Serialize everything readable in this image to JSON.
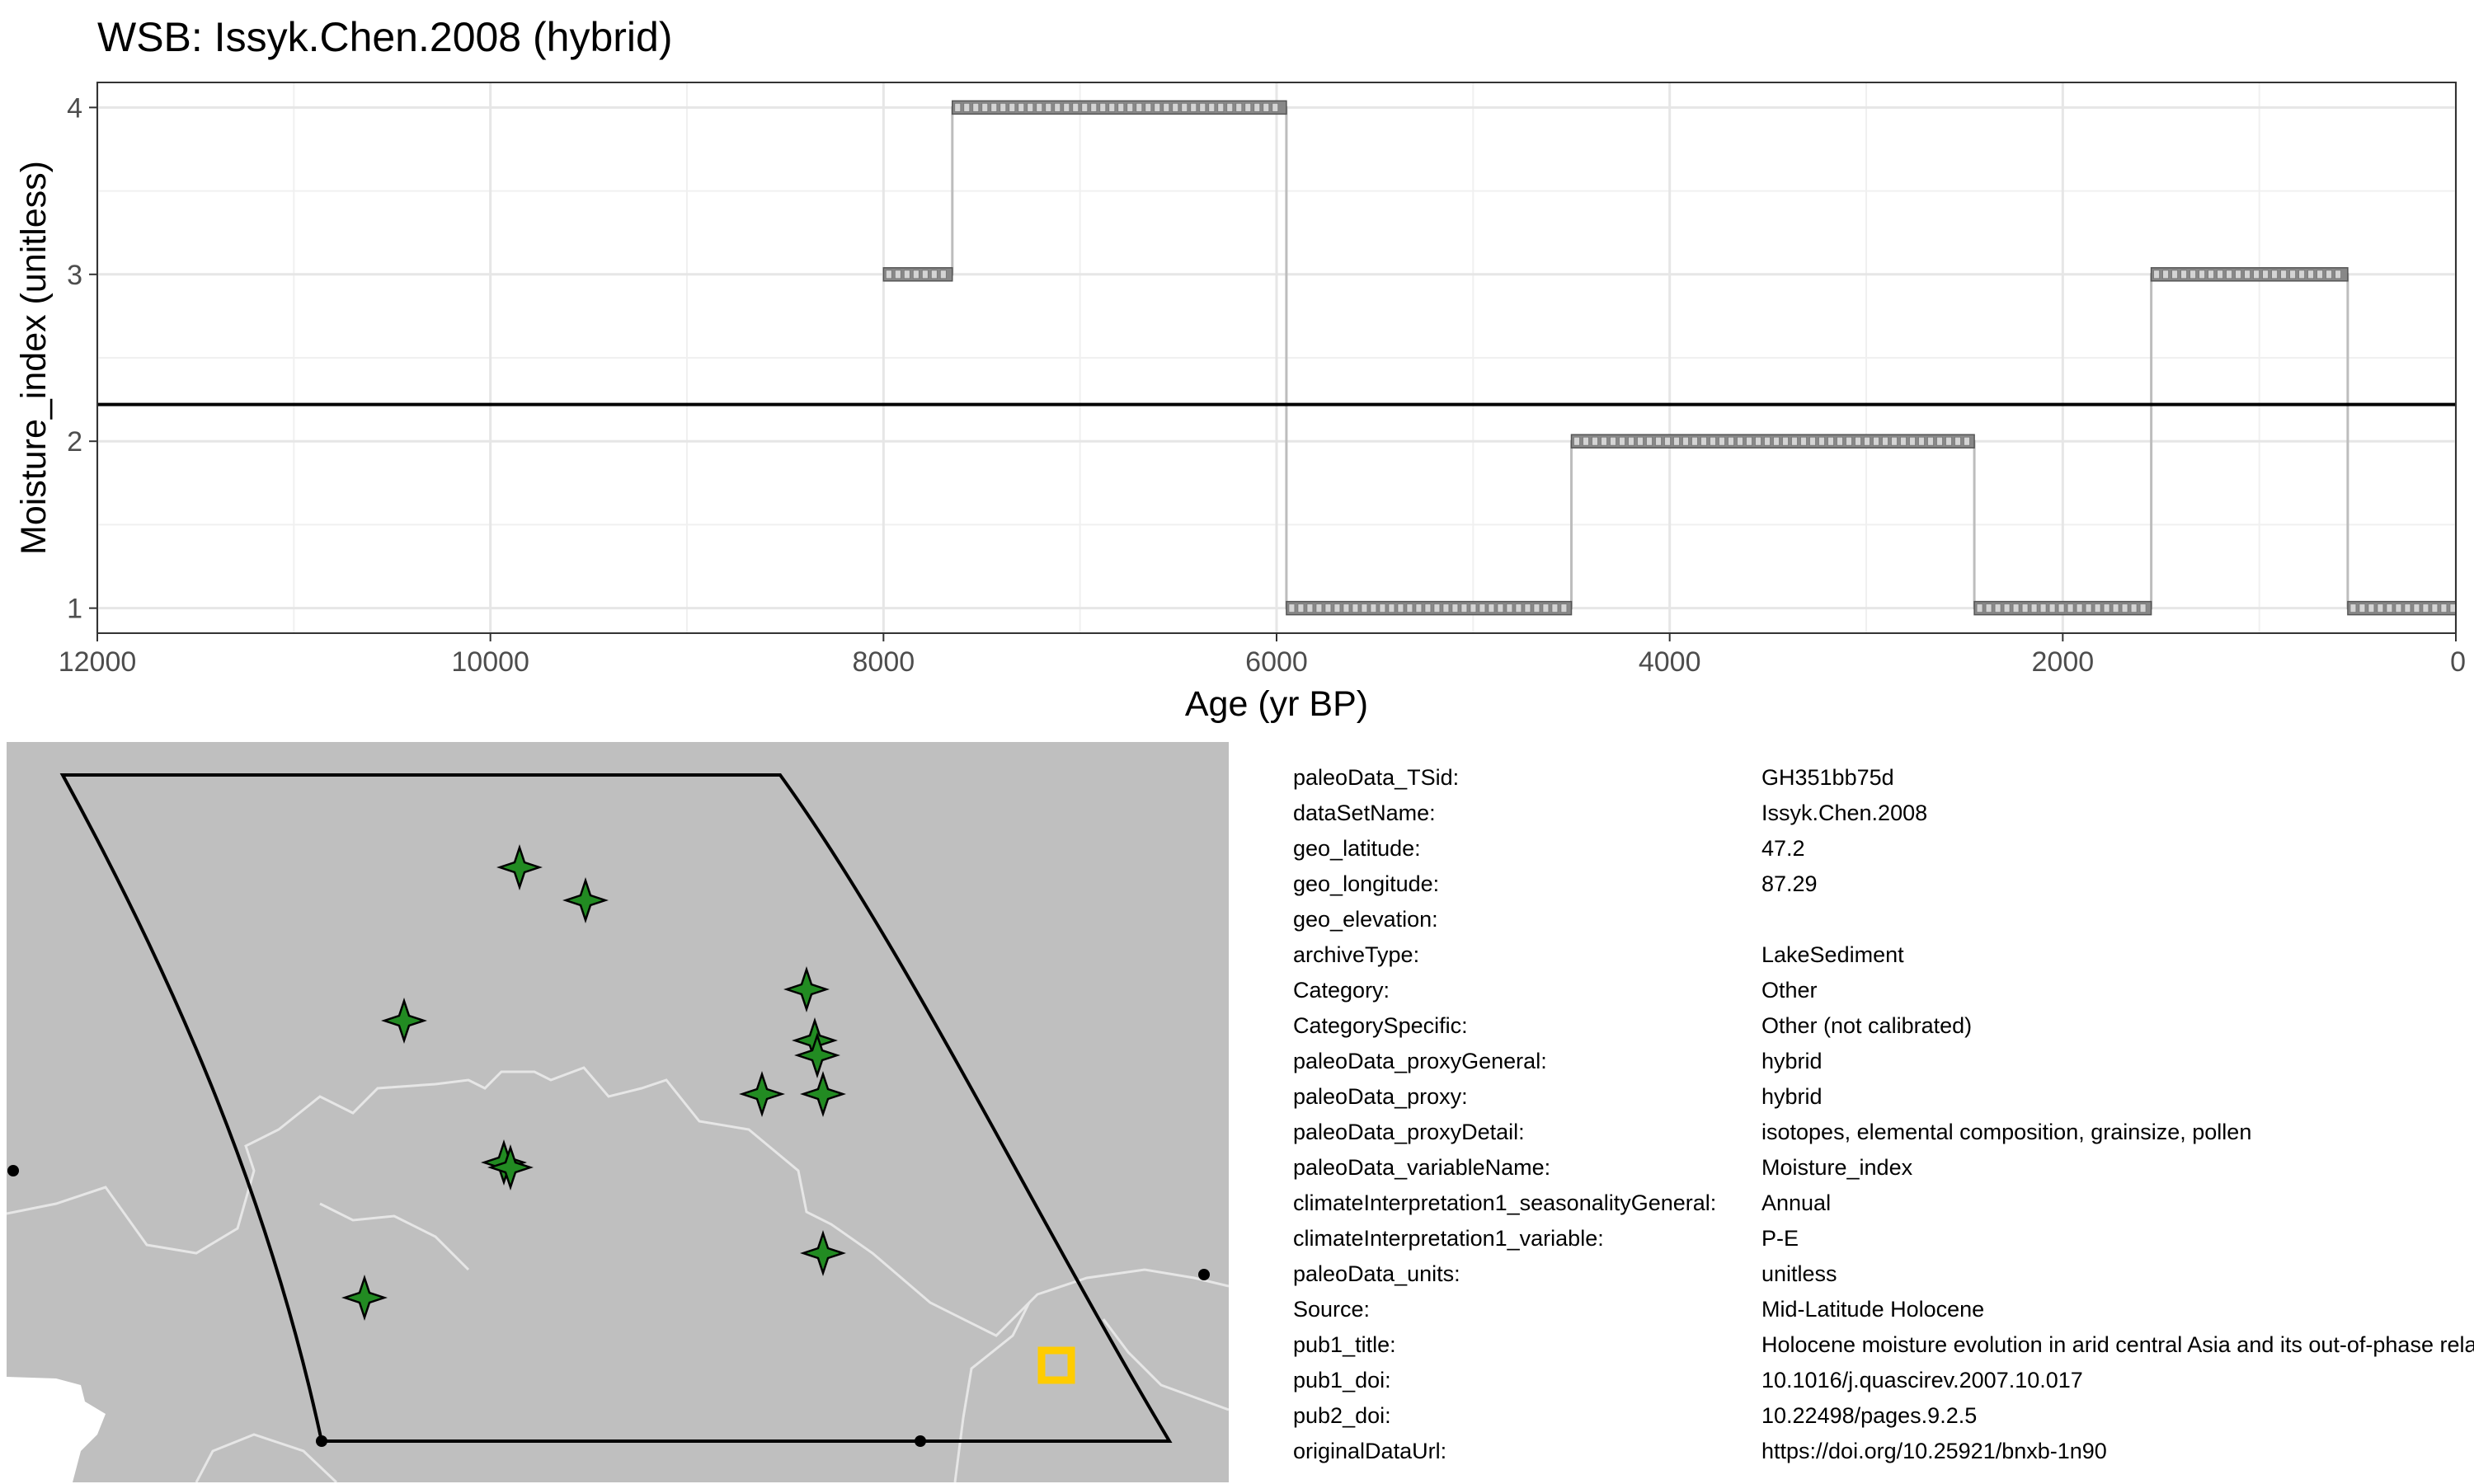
{
  "chart_data": {
    "type": "line",
    "title": "WSB: Issyk.Chen.2008 (hybrid)",
    "xlabel": "Age (yr BP)",
    "ylabel": "Moisture_index (unitless)",
    "xlim": [
      12000,
      0
    ],
    "ylim": [
      0.85,
      4.15
    ],
    "x_reversed": true,
    "x_ticks": [
      12000,
      10000,
      8000,
      6000,
      4000,
      2000,
      0
    ],
    "y_ticks": [
      1,
      2,
      3,
      4
    ],
    "grid": true,
    "mean_line": 2.22,
    "steps": [
      {
        "x0": 8000,
        "x1": 7650,
        "y": 3
      },
      {
        "x0": 7650,
        "x1": 5950,
        "y": 4
      },
      {
        "x0": 5950,
        "x1": 4500,
        "y": 1
      },
      {
        "x0": 4500,
        "x1": 2450,
        "y": 2
      },
      {
        "x0": 2450,
        "x1": 1550,
        "y": 1
      },
      {
        "x0": 1550,
        "x1": 550,
        "y": 3
      },
      {
        "x0": 550,
        "x1": 0,
        "y": 1
      }
    ],
    "series": [
      {
        "x": [
          8000,
          7650,
          7650,
          5950,
          5950,
          4500,
          4500,
          2450,
          2450,
          1550,
          1550,
          550,
          550,
          0
        ],
        "values": [
          3,
          3,
          4,
          4,
          1,
          1,
          2,
          2,
          1,
          1,
          3,
          3,
          1,
          1
        ]
      }
    ]
  },
  "map": {
    "land_color": "#bfbfbf",
    "border_color": "#e6e6e6",
    "region_outline_color": "#000000",
    "site_marker_color": "#228b22",
    "site_marker_icon": "four-point-star-icon",
    "site_count": 13,
    "selected_site_icon": "square-outline-icon",
    "selected_site_color": "#ffcc00"
  },
  "metadata": [
    {
      "key": "paleoData_TSid:",
      "value": "GH351bb75d"
    },
    {
      "key": "dataSetName:",
      "value": "Issyk.Chen.2008"
    },
    {
      "key": "geo_latitude:",
      "value": "47.2"
    },
    {
      "key": "geo_longitude:",
      "value": "87.29"
    },
    {
      "key": "geo_elevation:",
      "value": ""
    },
    {
      "key": "archiveType:",
      "value": "LakeSediment"
    },
    {
      "key": "Category:",
      "value": "Other"
    },
    {
      "key": "CategorySpecific:",
      "value": "Other (not calibrated)"
    },
    {
      "key": "paleoData_proxyGeneral:",
      "value": "hybrid"
    },
    {
      "key": "paleoData_proxy:",
      "value": "hybrid"
    },
    {
      "key": "paleoData_proxyDetail:",
      "value": "isotopes, elemental composition, grainsize, pollen"
    },
    {
      "key": "paleoData_variableName:",
      "value": "Moisture_index"
    },
    {
      "key": "climateInterpretation1_seasonalityGeneral:",
      "value": "Annual"
    },
    {
      "key": "climateInterpretation1_variable:",
      "value": "P-E"
    },
    {
      "key": "paleoData_units:",
      "value": "unitless"
    },
    {
      "key": "Source:",
      "value": "Mid-Latitude Holocene"
    },
    {
      "key": "pub1_title:",
      "value": "Holocene moisture evolution in arid central Asia and its out-of-phase relationship with Asian monsoon history"
    },
    {
      "key": "pub1_doi:",
      "value": "10.1016/j.quascirev.2007.10.017"
    },
    {
      "key": "pub2_doi:",
      "value": "10.22498/pages.9.2.5"
    },
    {
      "key": "originalDataUrl:",
      "value": "https://doi.org/10.25921/bnxb-1n90"
    }
  ]
}
